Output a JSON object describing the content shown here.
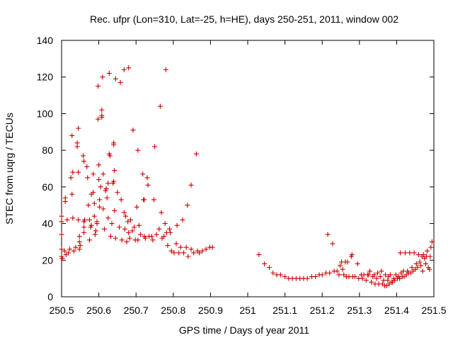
{
  "chart_data": {
    "type": "scatter",
    "title": "Rec. ufpr (Lon=310, Lat=-25, h=HE), days 250-251, 2011, window 002",
    "xlabel": "GPS time / Days of year 2011",
    "ylabel": "STEC from uqrg / TECUs",
    "xlim": [
      250.5,
      251.5
    ],
    "ylim": [
      0,
      140
    ],
    "xticks": [
      250.5,
      250.6,
      250.7,
      250.8,
      250.9,
      251,
      251.1,
      251.2,
      251.3,
      251.4,
      251.5
    ],
    "xtick_labels": [
      "250.5",
      "250.6",
      "250.7",
      "250.8",
      "250.9",
      "251",
      "251.1",
      "251.2",
      "251.3",
      "251.4",
      "251.5"
    ],
    "yticks": [
      0,
      20,
      40,
      60,
      80,
      100,
      120,
      140
    ],
    "ytick_labels": [
      "0",
      "20",
      "40",
      "60",
      "80",
      "100",
      "120",
      "140"
    ],
    "grid": false,
    "marker": "plus",
    "marker_color": "#cc0000",
    "series": [
      {
        "name": "STEC",
        "points": [
          [
            250.5,
            44
          ],
          [
            250.5,
            41
          ],
          [
            250.5,
            34
          ],
          [
            250.5,
            26
          ],
          [
            250.5,
            22
          ],
          [
            250.502,
            21
          ],
          [
            250.508,
            25
          ],
          [
            250.51,
            52
          ],
          [
            250.51,
            54
          ],
          [
            250.512,
            23
          ],
          [
            250.515,
            42
          ],
          [
            250.518,
            24
          ],
          [
            250.522,
            26
          ],
          [
            250.525,
            65
          ],
          [
            250.528,
            88
          ],
          [
            250.528,
            56
          ],
          [
            250.53,
            43
          ],
          [
            250.53,
            68
          ],
          [
            250.533,
            25
          ],
          [
            250.538,
            27
          ],
          [
            250.542,
            84
          ],
          [
            250.542,
            82
          ],
          [
            250.545,
            92
          ],
          [
            250.545,
            68
          ],
          [
            250.545,
            42
          ],
          [
            250.548,
            33
          ],
          [
            250.548,
            30
          ],
          [
            250.548,
            26
          ],
          [
            250.55,
            28
          ],
          [
            250.558,
            77
          ],
          [
            250.56,
            74
          ],
          [
            250.56,
            41
          ],
          [
            250.56,
            38
          ],
          [
            250.56,
            35
          ],
          [
            250.562,
            42
          ],
          [
            250.568,
            71
          ],
          [
            250.57,
            65
          ],
          [
            250.572,
            50
          ],
          [
            250.575,
            42
          ],
          [
            250.575,
            31
          ],
          [
            250.578,
            38
          ],
          [
            250.58,
            56
          ],
          [
            250.58,
            39
          ],
          [
            250.585,
            67
          ],
          [
            250.585,
            57
          ],
          [
            250.588,
            44
          ],
          [
            250.588,
            51
          ],
          [
            250.59,
            34
          ],
          [
            250.592,
            36
          ],
          [
            250.595,
            41
          ],
          [
            250.595,
            40
          ],
          [
            250.598,
            97
          ],
          [
            250.598,
            115
          ],
          [
            250.6,
            72
          ],
          [
            250.6,
            64
          ],
          [
            250.602,
            53
          ],
          [
            250.602,
            49
          ],
          [
            250.605,
            60
          ],
          [
            250.608,
            99
          ],
          [
            250.608,
            102
          ],
          [
            250.608,
            98
          ],
          [
            250.61,
            120
          ],
          [
            250.612,
            67
          ],
          [
            250.612,
            48
          ],
          [
            250.615,
            37
          ],
          [
            250.618,
            58
          ],
          [
            250.62,
            59
          ],
          [
            250.622,
            54
          ],
          [
            250.625,
            43
          ],
          [
            250.625,
            62
          ],
          [
            250.628,
            122
          ],
          [
            250.628,
            78
          ],
          [
            250.63,
            77
          ],
          [
            250.632,
            33
          ],
          [
            250.635,
            40
          ],
          [
            250.638,
            62
          ],
          [
            250.64,
            63
          ],
          [
            250.64,
            84
          ],
          [
            250.64,
            83
          ],
          [
            250.642,
            69
          ],
          [
            250.642,
            47
          ],
          [
            250.645,
            32
          ],
          [
            250.645,
            119
          ],
          [
            250.65,
            57
          ],
          [
            250.655,
            38
          ],
          [
            250.658,
            117
          ],
          [
            250.66,
            53
          ],
          [
            250.662,
            31
          ],
          [
            250.668,
            124
          ],
          [
            250.668,
            46
          ],
          [
            250.67,
            37
          ],
          [
            250.672,
            44
          ],
          [
            250.675,
            30
          ],
          [
            250.678,
            41
          ],
          [
            250.68,
            125
          ],
          [
            250.68,
            35
          ],
          [
            250.683,
            32
          ],
          [
            250.685,
            42
          ],
          [
            250.69,
            36
          ],
          [
            250.692,
            91
          ],
          [
            250.695,
            38
          ],
          [
            250.698,
            31
          ],
          [
            250.702,
            49
          ],
          [
            250.705,
            80
          ],
          [
            250.705,
            31
          ],
          [
            250.708,
            39
          ],
          [
            250.712,
            34
          ],
          [
            250.718,
            67
          ],
          [
            250.72,
            53
          ],
          [
            250.722,
            53
          ],
          [
            250.722,
            33
          ],
          [
            250.725,
            32
          ],
          [
            250.73,
            65
          ],
          [
            250.732,
            61
          ],
          [
            250.735,
            33
          ],
          [
            250.742,
            33
          ],
          [
            250.745,
            31
          ],
          [
            250.748,
            53
          ],
          [
            250.75,
            82
          ],
          [
            250.755,
            34
          ],
          [
            250.762,
            37
          ],
          [
            250.765,
            104
          ],
          [
            250.768,
            46
          ],
          [
            250.77,
            32
          ],
          [
            250.775,
            33
          ],
          [
            250.778,
            40
          ],
          [
            250.78,
            124
          ],
          [
            250.782,
            35
          ],
          [
            250.785,
            28
          ],
          [
            250.79,
            37
          ],
          [
            250.792,
            35
          ],
          [
            250.795,
            25
          ],
          [
            250.802,
            24
          ],
          [
            250.808,
            29
          ],
          [
            250.81,
            39
          ],
          [
            250.815,
            24
          ],
          [
            250.82,
            27
          ],
          [
            250.825,
            42
          ],
          [
            250.828,
            24
          ],
          [
            250.835,
            27
          ],
          [
            250.838,
            50
          ],
          [
            250.84,
            22
          ],
          [
            250.848,
            61
          ],
          [
            250.848,
            26
          ],
          [
            250.855,
            24
          ],
          [
            250.862,
            78
          ],
          [
            250.865,
            25
          ],
          [
            250.87,
            24
          ],
          [
            250.878,
            25
          ],
          [
            250.888,
            26
          ],
          [
            250.898,
            27
          ],
          [
            250.905,
            27
          ],
          [
            251.03,
            23
          ],
          [
            251.045,
            18
          ],
          [
            251.058,
            16
          ],
          [
            251.068,
            13
          ],
          [
            251.078,
            12
          ],
          [
            251.088,
            12
          ],
          [
            251.1,
            11
          ],
          [
            251.11,
            10
          ],
          [
            251.12,
            10
          ],
          [
            251.13,
            10
          ],
          [
            251.14,
            10
          ],
          [
            251.15,
            10
          ],
          [
            251.16,
            10
          ],
          [
            251.172,
            11
          ],
          [
            251.182,
            11
          ],
          [
            251.192,
            12
          ],
          [
            251.2,
            12
          ],
          [
            251.21,
            13
          ],
          [
            251.215,
            34
          ],
          [
            251.22,
            13
          ],
          [
            251.228,
            29
          ],
          [
            251.232,
            14
          ],
          [
            251.24,
            14
          ],
          [
            251.245,
            12
          ],
          [
            251.248,
            17
          ],
          [
            251.252,
            19
          ],
          [
            251.255,
            15
          ],
          [
            251.258,
            12
          ],
          [
            251.262,
            19
          ],
          [
            251.265,
            11
          ],
          [
            251.268,
            19
          ],
          [
            251.272,
            11
          ],
          [
            251.278,
            22
          ],
          [
            251.28,
            23
          ],
          [
            251.282,
            11
          ],
          [
            251.288,
            11
          ],
          [
            251.295,
            18
          ],
          [
            251.298,
            10
          ],
          [
            251.305,
            12
          ],
          [
            251.308,
            10
          ],
          [
            251.312,
            12
          ],
          [
            251.318,
            9
          ],
          [
            251.322,
            12
          ],
          [
            251.325,
            12
          ],
          [
            251.328,
            14
          ],
          [
            251.332,
            8
          ],
          [
            251.336,
            11
          ],
          [
            251.34,
            12
          ],
          [
            251.342,
            7
          ],
          [
            251.346,
            10
          ],
          [
            251.349,
            13
          ],
          [
            251.352,
            7
          ],
          [
            251.356,
            11
          ],
          [
            251.359,
            14
          ],
          [
            251.362,
            7
          ],
          [
            251.365,
            9
          ],
          [
            251.368,
            6
          ],
          [
            251.37,
            12
          ],
          [
            251.373,
            6
          ],
          [
            251.376,
            9
          ],
          [
            251.378,
            11
          ],
          [
            251.38,
            7
          ],
          [
            251.383,
            12
          ],
          [
            251.386,
            8
          ],
          [
            251.389,
            8
          ],
          [
            251.392,
            10
          ],
          [
            251.395,
            9
          ],
          [
            251.398,
            12
          ],
          [
            251.402,
            10
          ],
          [
            251.405,
            11
          ],
          [
            251.408,
            10
          ],
          [
            251.41,
            24
          ],
          [
            251.412,
            13
          ],
          [
            251.415,
            11
          ],
          [
            251.418,
            14
          ],
          [
            251.42,
            11
          ],
          [
            251.423,
            24
          ],
          [
            251.426,
            12
          ],
          [
            251.429,
            14
          ],
          [
            251.432,
            13
          ],
          [
            251.435,
            24
          ],
          [
            251.438,
            13
          ],
          [
            251.441,
            16
          ],
          [
            251.444,
            14
          ],
          [
            251.447,
            24
          ],
          [
            251.45,
            15
          ],
          [
            251.453,
            18
          ],
          [
            251.456,
            16
          ],
          [
            251.459,
            23
          ],
          [
            251.462,
            19
          ],
          [
            251.465,
            17
          ],
          [
            251.468,
            22
          ],
          [
            251.47,
            14
          ],
          [
            251.472,
            23
          ],
          [
            251.475,
            21
          ],
          [
            251.478,
            18
          ],
          [
            251.48,
            22
          ],
          [
            251.482,
            25
          ],
          [
            251.485,
            16
          ],
          [
            251.488,
            15
          ],
          [
            251.49,
            22
          ],
          [
            251.492,
            27
          ],
          [
            251.495,
            30
          ]
        ]
      }
    ]
  }
}
